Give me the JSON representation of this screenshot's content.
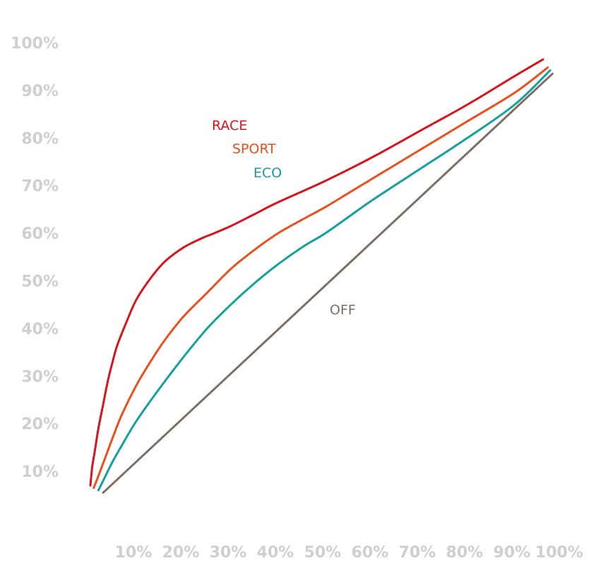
{
  "chart_data": {
    "type": "line",
    "title": "",
    "xlabel": "",
    "ylabel": "",
    "xlim": [
      0,
      100
    ],
    "ylim": [
      0,
      100
    ],
    "grid": false,
    "legend": "inline",
    "x_ticks": [
      "10%",
      "20%",
      "30%",
      "40%",
      "50%",
      "60%",
      "70%",
      "80%",
      "90%",
      "100%"
    ],
    "y_ticks": [
      "100%",
      "90%",
      "80%",
      "70%",
      "60%",
      "50%",
      "40%",
      "30%",
      "20%",
      "10%"
    ],
    "series": [
      {
        "name": "RACE",
        "color": "#d7141e",
        "points": [
          [
            0.3,
            7
          ],
          [
            0.7,
            11
          ],
          [
            1.2,
            14
          ],
          [
            2,
            19
          ],
          [
            3,
            24
          ],
          [
            4,
            29
          ],
          [
            5,
            33
          ],
          [
            6,
            36.5
          ],
          [
            8,
            41.5
          ],
          [
            10,
            46
          ],
          [
            13,
            50.5
          ],
          [
            16,
            54
          ],
          [
            20,
            57
          ],
          [
            24,
            59
          ],
          [
            26,
            59.8
          ],
          [
            30,
            61.5
          ],
          [
            35,
            64
          ],
          [
            40,
            66.5
          ],
          [
            50,
            71
          ],
          [
            60,
            76
          ],
          [
            70,
            81.5
          ],
          [
            80,
            87
          ],
          [
            90,
            93
          ],
          [
            96,
            96.5
          ]
        ]
      },
      {
        "name": "SPORT",
        "color": "#e8501e",
        "points": [
          [
            1,
            6.5
          ],
          [
            2,
            9
          ],
          [
            3.5,
            13
          ],
          [
            5,
            17
          ],
          [
            7,
            22
          ],
          [
            10,
            28
          ],
          [
            13,
            33
          ],
          [
            16,
            37.5
          ],
          [
            20,
            42.5
          ],
          [
            25,
            47.5
          ],
          [
            30,
            52.5
          ],
          [
            35,
            56.5
          ],
          [
            40,
            60
          ],
          [
            45,
            62.8
          ],
          [
            50,
            65.5
          ],
          [
            55,
            68.5
          ],
          [
            60,
            71.5
          ],
          [
            70,
            77.5
          ],
          [
            80,
            83.5
          ],
          [
            90,
            89.5
          ],
          [
            97,
            94.8
          ]
        ]
      },
      {
        "name": "ECO",
        "color": "#14a09b",
        "points": [
          [
            2,
            6
          ],
          [
            3,
            8
          ],
          [
            5,
            12
          ],
          [
            7,
            15.5
          ],
          [
            10,
            20.5
          ],
          [
            15,
            27.5
          ],
          [
            20,
            34
          ],
          [
            25,
            40
          ],
          [
            30,
            45
          ],
          [
            35,
            49.5
          ],
          [
            40,
            53.5
          ],
          [
            45,
            57
          ],
          [
            50,
            60
          ],
          [
            55,
            63.5
          ],
          [
            60,
            67
          ],
          [
            70,
            73.5
          ],
          [
            80,
            80
          ],
          [
            90,
            87
          ],
          [
            97.5,
            94.2
          ]
        ]
      },
      {
        "name": "OFF",
        "color": "#7d6e64",
        "points": [
          [
            3,
            5.5
          ],
          [
            98,
            93.5
          ]
        ]
      }
    ]
  }
}
